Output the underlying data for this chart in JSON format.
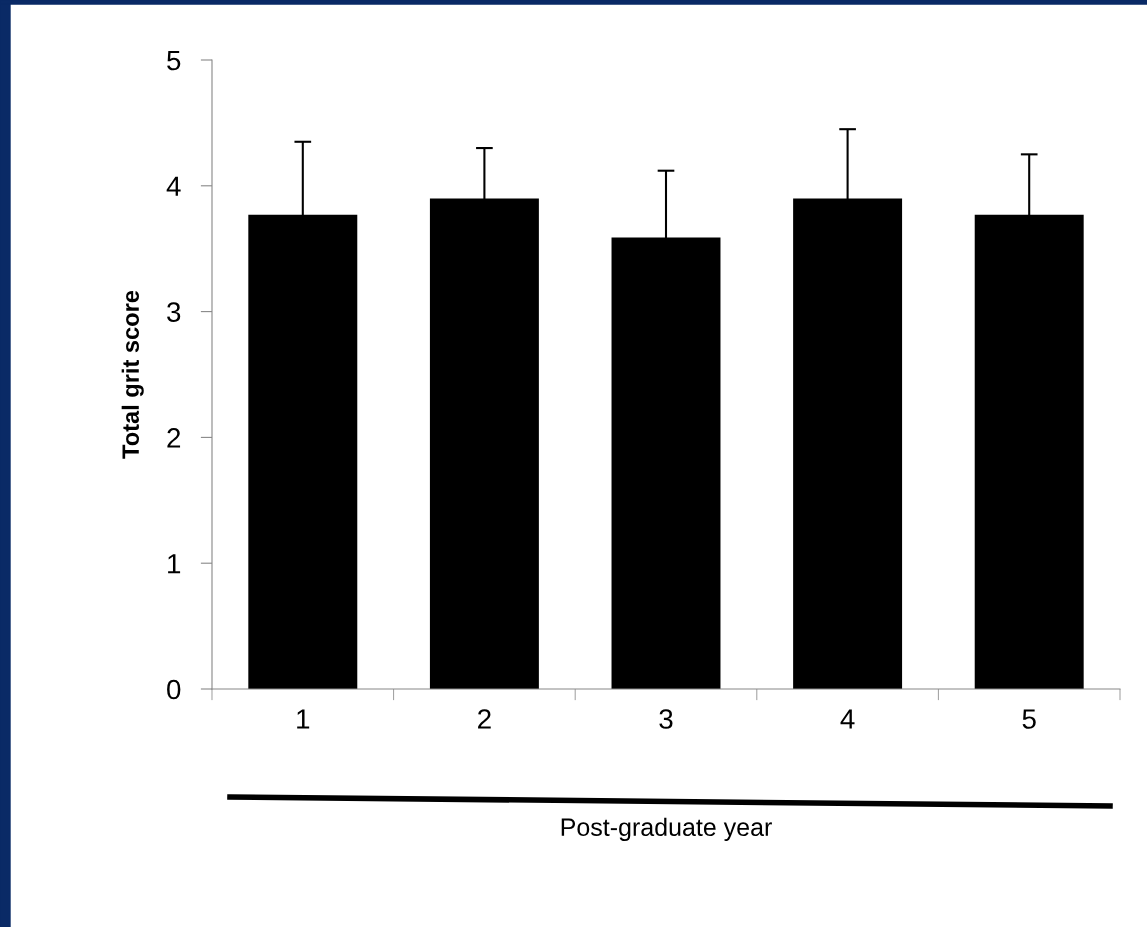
{
  "chart_data": {
    "type": "bar",
    "xlabel": "Post-graduate year",
    "ylabel": "Total grit score",
    "categories": [
      "1",
      "2",
      "3",
      "4",
      "5"
    ],
    "values": [
      3.77,
      3.9,
      3.59,
      3.9,
      3.77
    ],
    "errors": [
      0.58,
      0.4,
      0.53,
      0.55,
      0.48
    ],
    "color": "#000000",
    "ylim": [
      0,
      5
    ],
    "yticks": [
      0,
      1,
      2,
      3,
      4,
      5
    ],
    "grid": false,
    "legend": false
  }
}
